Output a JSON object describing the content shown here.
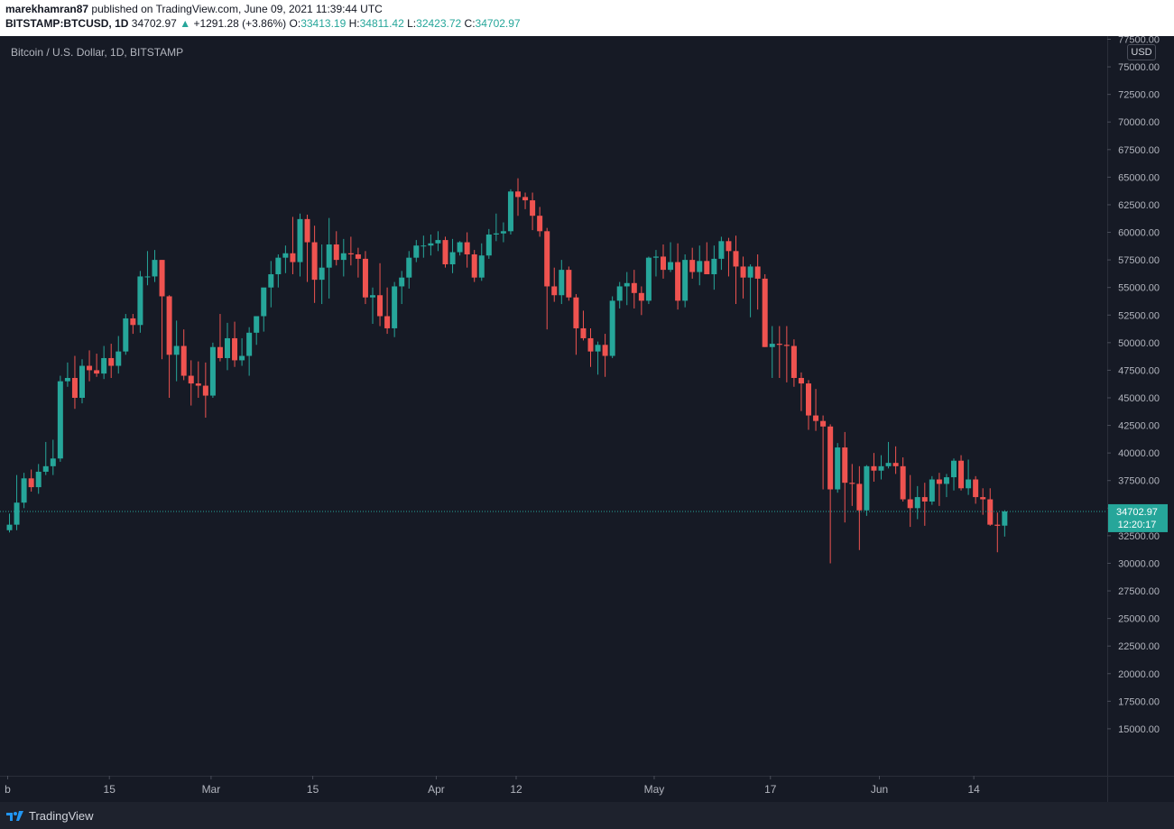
{
  "header": {
    "user": "marekhamran87",
    "published_text": " published on TradingView.com, June 09, 2021 11:39:44 UTC",
    "symbol": "BITSTAMP:BTCUSD, 1D",
    "price": "34702.97",
    "change_arrow": "▲",
    "change": "+1291.28 (+3.86%)",
    "o_label": "O:",
    "o_value": "33413.19",
    "h_label": "H:",
    "h_value": "34811.42",
    "l_label": "L:",
    "l_value": "32423.72",
    "c_label": "C:",
    "c_value": "34702.97"
  },
  "legend": {
    "title": "Bitcoin / U.S. Dollar, 1D, BITSTAMP"
  },
  "currency_badge": "USD",
  "price_marker": {
    "price": "34702.97",
    "countdown": "12:20:17"
  },
  "footer": {
    "brand": "TradingView"
  },
  "colors": {
    "up": "#26a69a",
    "down": "#ef5350",
    "background": "#161a25",
    "axis_text": "#b2b5be"
  },
  "chart_data": {
    "type": "candlestick",
    "title": "Bitcoin / U.S. Dollar, 1D, BITSTAMP",
    "ylim": [
      12500,
      77500
    ],
    "y_ticks": [
      "15000.00",
      "17500.00",
      "20000.00",
      "22500.00",
      "25000.00",
      "27500.00",
      "30000.00",
      "32500.00",
      "35000.00",
      "37500.00",
      "40000.00",
      "42500.00",
      "45000.00",
      "47500.00",
      "50000.00",
      "52500.00",
      "55000.00",
      "57500.00",
      "60000.00",
      "62500.00",
      "65000.00",
      "67500.00",
      "70000.00",
      "72500.00",
      "75000.00",
      "77500.00"
    ],
    "x_tick_labels": [
      {
        "label": "b",
        "index": 0
      },
      {
        "label": "15",
        "index": 14
      },
      {
        "label": "Mar",
        "index": 28
      },
      {
        "label": "15",
        "index": 42
      },
      {
        "label": "Apr",
        "index": 59
      },
      {
        "label": "12",
        "index": 70
      },
      {
        "label": "May",
        "index": 89
      },
      {
        "label": "17",
        "index": 105
      },
      {
        "label": "Jun",
        "index": 120
      },
      {
        "label": "14",
        "index": 133
      }
    ],
    "candles": [
      {
        "o": 33000,
        "h": 34500,
        "l": 32800,
        "c": 33500
      },
      {
        "o": 33500,
        "h": 38000,
        "l": 33000,
        "c": 35500
      },
      {
        "o": 35500,
        "h": 38200,
        "l": 35000,
        "c": 37700
      },
      {
        "o": 37700,
        "h": 38500,
        "l": 36500,
        "c": 36900
      },
      {
        "o": 36900,
        "h": 39000,
        "l": 36300,
        "c": 38300
      },
      {
        "o": 38300,
        "h": 41000,
        "l": 38000,
        "c": 38800
      },
      {
        "o": 38800,
        "h": 41200,
        "l": 38000,
        "c": 39500
      },
      {
        "o": 39500,
        "h": 47000,
        "l": 39200,
        "c": 46500
      },
      {
        "o": 46500,
        "h": 48200,
        "l": 46000,
        "c": 46800
      },
      {
        "o": 46800,
        "h": 48800,
        "l": 44000,
        "c": 45000
      },
      {
        "o": 45000,
        "h": 48500,
        "l": 44500,
        "c": 47900
      },
      {
        "o": 47900,
        "h": 49300,
        "l": 46500,
        "c": 47500
      },
      {
        "o": 47500,
        "h": 49000,
        "l": 46900,
        "c": 47200
      },
      {
        "o": 47200,
        "h": 49700,
        "l": 46700,
        "c": 48600
      },
      {
        "o": 48600,
        "h": 49900,
        "l": 46800,
        "c": 47900
      },
      {
        "o": 47900,
        "h": 50600,
        "l": 47200,
        "c": 49200
      },
      {
        "o": 49200,
        "h": 52600,
        "l": 48900,
        "c": 52200
      },
      {
        "o": 52200,
        "h": 52600,
        "l": 50800,
        "c": 51600
      },
      {
        "o": 51600,
        "h": 56500,
        "l": 50900,
        "c": 56000
      },
      {
        "o": 56000,
        "h": 58300,
        "l": 55200,
        "c": 56000
      },
      {
        "o": 56000,
        "h": 58400,
        "l": 55500,
        "c": 57500
      },
      {
        "o": 57500,
        "h": 57500,
        "l": 48500,
        "c": 54200
      },
      {
        "o": 54200,
        "h": 54300,
        "l": 45000,
        "c": 48900
      },
      {
        "o": 48900,
        "h": 52000,
        "l": 46500,
        "c": 49700
      },
      {
        "o": 49700,
        "h": 51200,
        "l": 46600,
        "c": 47000
      },
      {
        "o": 47000,
        "h": 48400,
        "l": 44300,
        "c": 46300
      },
      {
        "o": 46300,
        "h": 48300,
        "l": 45000,
        "c": 46100
      },
      {
        "o": 46100,
        "h": 48200,
        "l": 43200,
        "c": 45200
      },
      {
        "o": 45200,
        "h": 50000,
        "l": 45000,
        "c": 49600
      },
      {
        "o": 49600,
        "h": 52600,
        "l": 48300,
        "c": 48600
      },
      {
        "o": 48600,
        "h": 51800,
        "l": 47500,
        "c": 50400
      },
      {
        "o": 50400,
        "h": 51900,
        "l": 47800,
        "c": 48400
      },
      {
        "o": 48400,
        "h": 50400,
        "l": 47900,
        "c": 48800
      },
      {
        "o": 48800,
        "h": 51400,
        "l": 47000,
        "c": 50900
      },
      {
        "o": 50900,
        "h": 52400,
        "l": 49800,
        "c": 52400
      },
      {
        "o": 52400,
        "h": 54900,
        "l": 51000,
        "c": 55000
      },
      {
        "o": 55000,
        "h": 57400,
        "l": 53200,
        "c": 56200
      },
      {
        "o": 56200,
        "h": 58000,
        "l": 55000,
        "c": 57700
      },
      {
        "o": 57700,
        "h": 58800,
        "l": 56300,
        "c": 58100
      },
      {
        "o": 58100,
        "h": 61400,
        "l": 56200,
        "c": 57300
      },
      {
        "o": 57300,
        "h": 61700,
        "l": 56000,
        "c": 61200
      },
      {
        "o": 61200,
        "h": 61600,
        "l": 55500,
        "c": 59100
      },
      {
        "o": 59100,
        "h": 60600,
        "l": 53600,
        "c": 55700
      },
      {
        "o": 55700,
        "h": 58900,
        "l": 53500,
        "c": 56800
      },
      {
        "o": 56800,
        "h": 61300,
        "l": 54000,
        "c": 58900
      },
      {
        "o": 58900,
        "h": 60100,
        "l": 57000,
        "c": 57500
      },
      {
        "o": 57500,
        "h": 59400,
        "l": 56000,
        "c": 58100
      },
      {
        "o": 58100,
        "h": 59600,
        "l": 57000,
        "c": 58000
      },
      {
        "o": 58000,
        "h": 58600,
        "l": 55900,
        "c": 57600
      },
      {
        "o": 57600,
        "h": 58300,
        "l": 53500,
        "c": 54100
      },
      {
        "o": 54100,
        "h": 55000,
        "l": 51700,
        "c": 54300
      },
      {
        "o": 54300,
        "h": 57200,
        "l": 51500,
        "c": 52400
      },
      {
        "o": 52400,
        "h": 55000,
        "l": 50800,
        "c": 51300
      },
      {
        "o": 51300,
        "h": 55500,
        "l": 50500,
        "c": 55100
      },
      {
        "o": 55100,
        "h": 56500,
        "l": 53500,
        "c": 55900
      },
      {
        "o": 55900,
        "h": 58300,
        "l": 54900,
        "c": 57700
      },
      {
        "o": 57700,
        "h": 59300,
        "l": 57300,
        "c": 58800
      },
      {
        "o": 58800,
        "h": 59700,
        "l": 57700,
        "c": 58800
      },
      {
        "o": 58800,
        "h": 59800,
        "l": 57900,
        "c": 59000
      },
      {
        "o": 59000,
        "h": 60100,
        "l": 58300,
        "c": 59300
      },
      {
        "o": 59300,
        "h": 59600,
        "l": 56800,
        "c": 57100
      },
      {
        "o": 57100,
        "h": 59400,
        "l": 56300,
        "c": 58200
      },
      {
        "o": 58200,
        "h": 59200,
        "l": 57900,
        "c": 59100
      },
      {
        "o": 59100,
        "h": 60000,
        "l": 56800,
        "c": 58000
      },
      {
        "o": 58000,
        "h": 58400,
        "l": 55500,
        "c": 55900
      },
      {
        "o": 55900,
        "h": 59000,
        "l": 55600,
        "c": 57900
      },
      {
        "o": 57900,
        "h": 60300,
        "l": 57600,
        "c": 59800
      },
      {
        "o": 59800,
        "h": 61700,
        "l": 59200,
        "c": 59900
      },
      {
        "o": 59900,
        "h": 60900,
        "l": 59100,
        "c": 60100
      },
      {
        "o": 60100,
        "h": 63900,
        "l": 59800,
        "c": 63700
      },
      {
        "o": 63700,
        "h": 64900,
        "l": 61500,
        "c": 63200
      },
      {
        "o": 63200,
        "h": 63600,
        "l": 62100,
        "c": 62900
      },
      {
        "o": 62900,
        "h": 63600,
        "l": 60200,
        "c": 61500
      },
      {
        "o": 61500,
        "h": 62300,
        "l": 59600,
        "c": 60100
      },
      {
        "o": 60100,
        "h": 60400,
        "l": 51200,
        "c": 55100
      },
      {
        "o": 55100,
        "h": 56800,
        "l": 53700,
        "c": 54300
      },
      {
        "o": 54300,
        "h": 57500,
        "l": 53500,
        "c": 56600
      },
      {
        "o": 56600,
        "h": 56900,
        "l": 53800,
        "c": 54100
      },
      {
        "o": 54100,
        "h": 54400,
        "l": 48900,
        "c": 51300
      },
      {
        "o": 51300,
        "h": 52900,
        "l": 50200,
        "c": 50400
      },
      {
        "o": 50400,
        "h": 51300,
        "l": 47800,
        "c": 49200
      },
      {
        "o": 49200,
        "h": 50100,
        "l": 47100,
        "c": 49800
      },
      {
        "o": 49800,
        "h": 50800,
        "l": 46900,
        "c": 48800
      },
      {
        "o": 48800,
        "h": 54200,
        "l": 48600,
        "c": 53800
      },
      {
        "o": 53800,
        "h": 55500,
        "l": 53100,
        "c": 55100
      },
      {
        "o": 55100,
        "h": 56400,
        "l": 53400,
        "c": 55400
      },
      {
        "o": 55400,
        "h": 56600,
        "l": 53100,
        "c": 54500
      },
      {
        "o": 54500,
        "h": 55100,
        "l": 52500,
        "c": 53800
      },
      {
        "o": 53800,
        "h": 57800,
        "l": 53500,
        "c": 57700
      },
      {
        "o": 57700,
        "h": 58400,
        "l": 56000,
        "c": 57800
      },
      {
        "o": 57800,
        "h": 58900,
        "l": 55800,
        "c": 56600
      },
      {
        "o": 56600,
        "h": 59100,
        "l": 56400,
        "c": 57300
      },
      {
        "o": 57300,
        "h": 59000,
        "l": 53000,
        "c": 53800
      },
      {
        "o": 53800,
        "h": 58000,
        "l": 53200,
        "c": 57500
      },
      {
        "o": 57500,
        "h": 58600,
        "l": 55800,
        "c": 56400
      },
      {
        "o": 56400,
        "h": 58800,
        "l": 55200,
        "c": 57400
      },
      {
        "o": 57400,
        "h": 59100,
        "l": 56500,
        "c": 56200
      },
      {
        "o": 56200,
        "h": 58800,
        "l": 54800,
        "c": 57600
      },
      {
        "o": 57600,
        "h": 59600,
        "l": 56600,
        "c": 59200
      },
      {
        "o": 59200,
        "h": 59500,
        "l": 56000,
        "c": 58300
      },
      {
        "o": 58300,
        "h": 59700,
        "l": 53500,
        "c": 56900
      },
      {
        "o": 56900,
        "h": 57800,
        "l": 54000,
        "c": 55900
      },
      {
        "o": 55900,
        "h": 57100,
        "l": 52300,
        "c": 56900
      },
      {
        "o": 56900,
        "h": 58000,
        "l": 53000,
        "c": 55800
      },
      {
        "o": 55800,
        "h": 56200,
        "l": 49600,
        "c": 49600
      },
      {
        "o": 49600,
        "h": 51500,
        "l": 46800,
        "c": 49900
      },
      {
        "o": 49900,
        "h": 51500,
        "l": 46800,
        "c": 49800
      },
      {
        "o": 49800,
        "h": 51500,
        "l": 46400,
        "c": 49700
      },
      {
        "o": 49700,
        "h": 50300,
        "l": 46000,
        "c": 46800
      },
      {
        "o": 46800,
        "h": 47300,
        "l": 43800,
        "c": 46300
      },
      {
        "o": 46300,
        "h": 46600,
        "l": 42100,
        "c": 43400
      },
      {
        "o": 43400,
        "h": 45800,
        "l": 42000,
        "c": 42900
      },
      {
        "o": 42900,
        "h": 43400,
        "l": 36700,
        "c": 42400
      },
      {
        "o": 42400,
        "h": 42600,
        "l": 30000,
        "c": 36700
      },
      {
        "o": 36700,
        "h": 40900,
        "l": 36400,
        "c": 40500
      },
      {
        "o": 40500,
        "h": 41900,
        "l": 33700,
        "c": 37300
      },
      {
        "o": 37300,
        "h": 39000,
        "l": 35200,
        "c": 37200
      },
      {
        "o": 37200,
        "h": 38800,
        "l": 31200,
        "c": 34800
      },
      {
        "o": 34800,
        "h": 38900,
        "l": 34300,
        "c": 38800
      },
      {
        "o": 38800,
        "h": 40000,
        "l": 37400,
        "c": 38400
      },
      {
        "o": 38400,
        "h": 39800,
        "l": 37600,
        "c": 38800
      },
      {
        "o": 38800,
        "h": 41000,
        "l": 38600,
        "c": 39100
      },
      {
        "o": 39100,
        "h": 40600,
        "l": 38100,
        "c": 38800
      },
      {
        "o": 38800,
        "h": 39600,
        "l": 35600,
        "c": 35800
      },
      {
        "o": 35800,
        "h": 38000,
        "l": 33300,
        "c": 35000
      },
      {
        "o": 35000,
        "h": 37000,
        "l": 34000,
        "c": 36000
      },
      {
        "o": 36000,
        "h": 37300,
        "l": 33400,
        "c": 35600
      },
      {
        "o": 35600,
        "h": 37900,
        "l": 35300,
        "c": 37600
      },
      {
        "o": 37600,
        "h": 38200,
        "l": 35200,
        "c": 37200
      },
      {
        "o": 37200,
        "h": 38100,
        "l": 36000,
        "c": 37800
      },
      {
        "o": 37800,
        "h": 39500,
        "l": 36600,
        "c": 39300
      },
      {
        "o": 39300,
        "h": 39800,
        "l": 36600,
        "c": 36800
      },
      {
        "o": 36800,
        "h": 39400,
        "l": 36200,
        "c": 37600
      },
      {
        "o": 37600,
        "h": 37900,
        "l": 35400,
        "c": 36000
      },
      {
        "o": 36000,
        "h": 36800,
        "l": 34400,
        "c": 35800
      },
      {
        "o": 35800,
        "h": 36800,
        "l": 33400,
        "c": 33500
      },
      {
        "o": 33500,
        "h": 34600,
        "l": 31000,
        "c": 33400
      },
      {
        "o": 33413.19,
        "h": 34811.42,
        "l": 32423.72,
        "c": 34702.97
      }
    ]
  }
}
